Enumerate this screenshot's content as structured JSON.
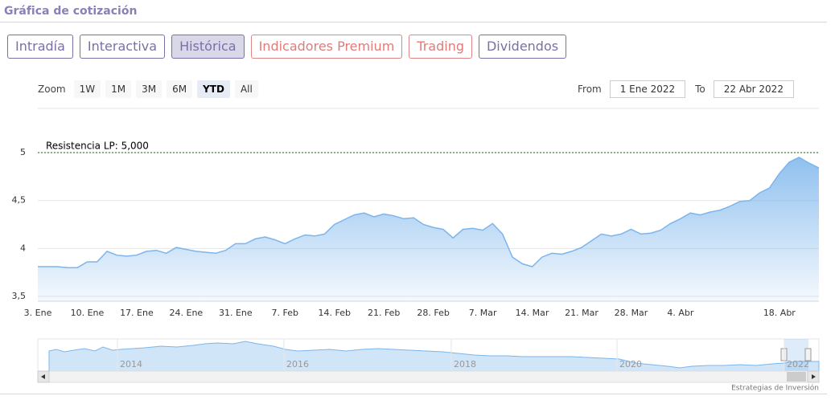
{
  "header": {
    "title": "Gráfica de cotización"
  },
  "tabs": [
    "Intradía",
    "Interactiva",
    "Histórica",
    "Indicadores Premium",
    "Trading",
    "Dividendos"
  ],
  "active_tab": 2,
  "zoom": {
    "label": "Zoom",
    "buttons": [
      "1W",
      "1M",
      "3M",
      "6M",
      "YTD",
      "All"
    ],
    "active": 4
  },
  "range": {
    "from_label": "From",
    "from": "1 Ene 2022",
    "to_label": "To",
    "to": "22 Abr 2022"
  },
  "chart_data": {
    "type": "area",
    "categories": [
      "3. Ene",
      null,
      null,
      null,
      null,
      "10. Ene",
      null,
      null,
      null,
      null,
      "17. Ene",
      null,
      null,
      null,
      null,
      "24. Ene",
      null,
      null,
      null,
      null,
      "31. Ene",
      null,
      null,
      null,
      null,
      "7. Feb",
      null,
      null,
      null,
      null,
      "14. Feb",
      null,
      null,
      null,
      null,
      "21. Feb",
      null,
      null,
      null,
      null,
      "28. Feb",
      null,
      null,
      null,
      null,
      "7. Mar",
      null,
      null,
      null,
      null,
      "14. Mar",
      null,
      null,
      null,
      null,
      "21. Mar",
      null,
      null,
      null,
      null,
      "28. Mar",
      null,
      null,
      null,
      null,
      "4. Abr",
      null,
      null,
      null,
      null,
      null,
      null,
      null,
      null,
      null,
      "18. Abr",
      null,
      null,
      null,
      null
    ],
    "values": [
      3.81,
      3.81,
      3.81,
      3.8,
      3.8,
      3.86,
      3.86,
      3.97,
      3.93,
      3.92,
      3.93,
      3.97,
      3.98,
      3.95,
      4.01,
      3.99,
      3.97,
      3.96,
      3.95,
      3.98,
      4.05,
      4.05,
      4.1,
      4.12,
      4.09,
      4.05,
      4.1,
      4.14,
      4.13,
      4.15,
      4.25,
      4.3,
      4.35,
      4.37,
      4.33,
      4.36,
      4.34,
      4.31,
      4.32,
      4.25,
      4.22,
      4.2,
      4.11,
      4.2,
      4.21,
      4.19,
      4.26,
      4.15,
      3.91,
      3.84,
      3.81,
      3.91,
      3.95,
      3.94,
      3.97,
      4.01,
      4.08,
      4.15,
      4.13,
      4.15,
      4.2,
      4.15,
      4.16,
      4.19,
      4.26,
      4.31,
      4.37,
      4.35,
      4.38,
      4.4,
      4.44,
      4.49,
      4.5,
      4.58,
      4.63,
      4.78,
      4.9,
      4.95,
      4.89,
      4.84
    ],
    "color": "#7cb5ec",
    "ylim": [
      3.5,
      5.5
    ],
    "yticks": [
      {
        "value": 3.5,
        "label": "3,5"
      },
      4,
      {
        "value": 4.5,
        "label": "4,5"
      },
      5
    ],
    "grid": true,
    "plot_line": {
      "value": 5,
      "label": "Resistencia LP: 5,000",
      "color": "#1b5e20"
    }
  },
  "navigator": {
    "labels": [
      "2014",
      "2016",
      "2018",
      "2020",
      "2022"
    ]
  },
  "credit": "Estrategias de Inversión"
}
